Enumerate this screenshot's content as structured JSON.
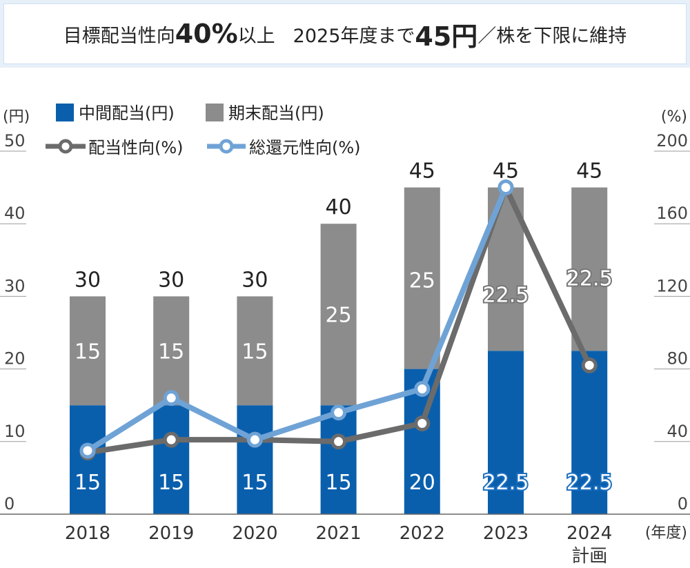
{
  "headline": {
    "part1": "目標配当性向",
    "part2": "40%",
    "part3": "以上",
    "part4": "2025年度まで",
    "part5": "45円",
    "part6": "／株を下限に維持"
  },
  "chart_data": {
    "type": "bar",
    "stacked": true,
    "categories": [
      "2018",
      "2019",
      "2020",
      "2021",
      "2022",
      "2023",
      "2024"
    ],
    "category_sublabels": [
      "",
      "",
      "",
      "",
      "",
      "",
      "計画"
    ],
    "xlabel": "(年度)",
    "ylabel_left": "(円)",
    "ylabel_right": "(%)",
    "ylim_left": [
      0,
      50
    ],
    "yticks_left": [
      0,
      10,
      20,
      30,
      40,
      50
    ],
    "ylim_right": [
      0,
      200
    ],
    "yticks_right": [
      0,
      40,
      80,
      120,
      160,
      200
    ],
    "legend_placement": "top-left",
    "series": [
      {
        "name": "中間配当(円)",
        "type": "bar",
        "axis": "left",
        "color": "#0a5fad",
        "values": [
          15,
          15,
          15,
          15,
          20,
          22.5,
          22.5
        ],
        "labels": [
          "15",
          "15",
          "15",
          "15",
          "20",
          "22.5",
          "22.5"
        ]
      },
      {
        "name": "期末配当(円)",
        "type": "bar",
        "axis": "left",
        "color": "#8c8c8c",
        "values": [
          15,
          15,
          15,
          25,
          25,
          22.5,
          22.5
        ],
        "labels": [
          "15",
          "15",
          "15",
          "25",
          "25",
          "22.5",
          "22.5"
        ]
      },
      {
        "name": "配当性向(%)",
        "type": "line",
        "axis": "right",
        "color": "#6b6b6b",
        "values": [
          34,
          41,
          41,
          40,
          50,
          180,
          82
        ]
      },
      {
        "name": "総還元性向(%)",
        "type": "line",
        "axis": "right",
        "color": "#6fa3d6",
        "values": [
          35,
          64,
          41,
          56,
          69,
          180,
          null
        ]
      }
    ],
    "totals": [
      "30",
      "30",
      "30",
      "40",
      "45",
      "45",
      "45"
    ],
    "outlined_label_indices": [
      5,
      6
    ]
  }
}
